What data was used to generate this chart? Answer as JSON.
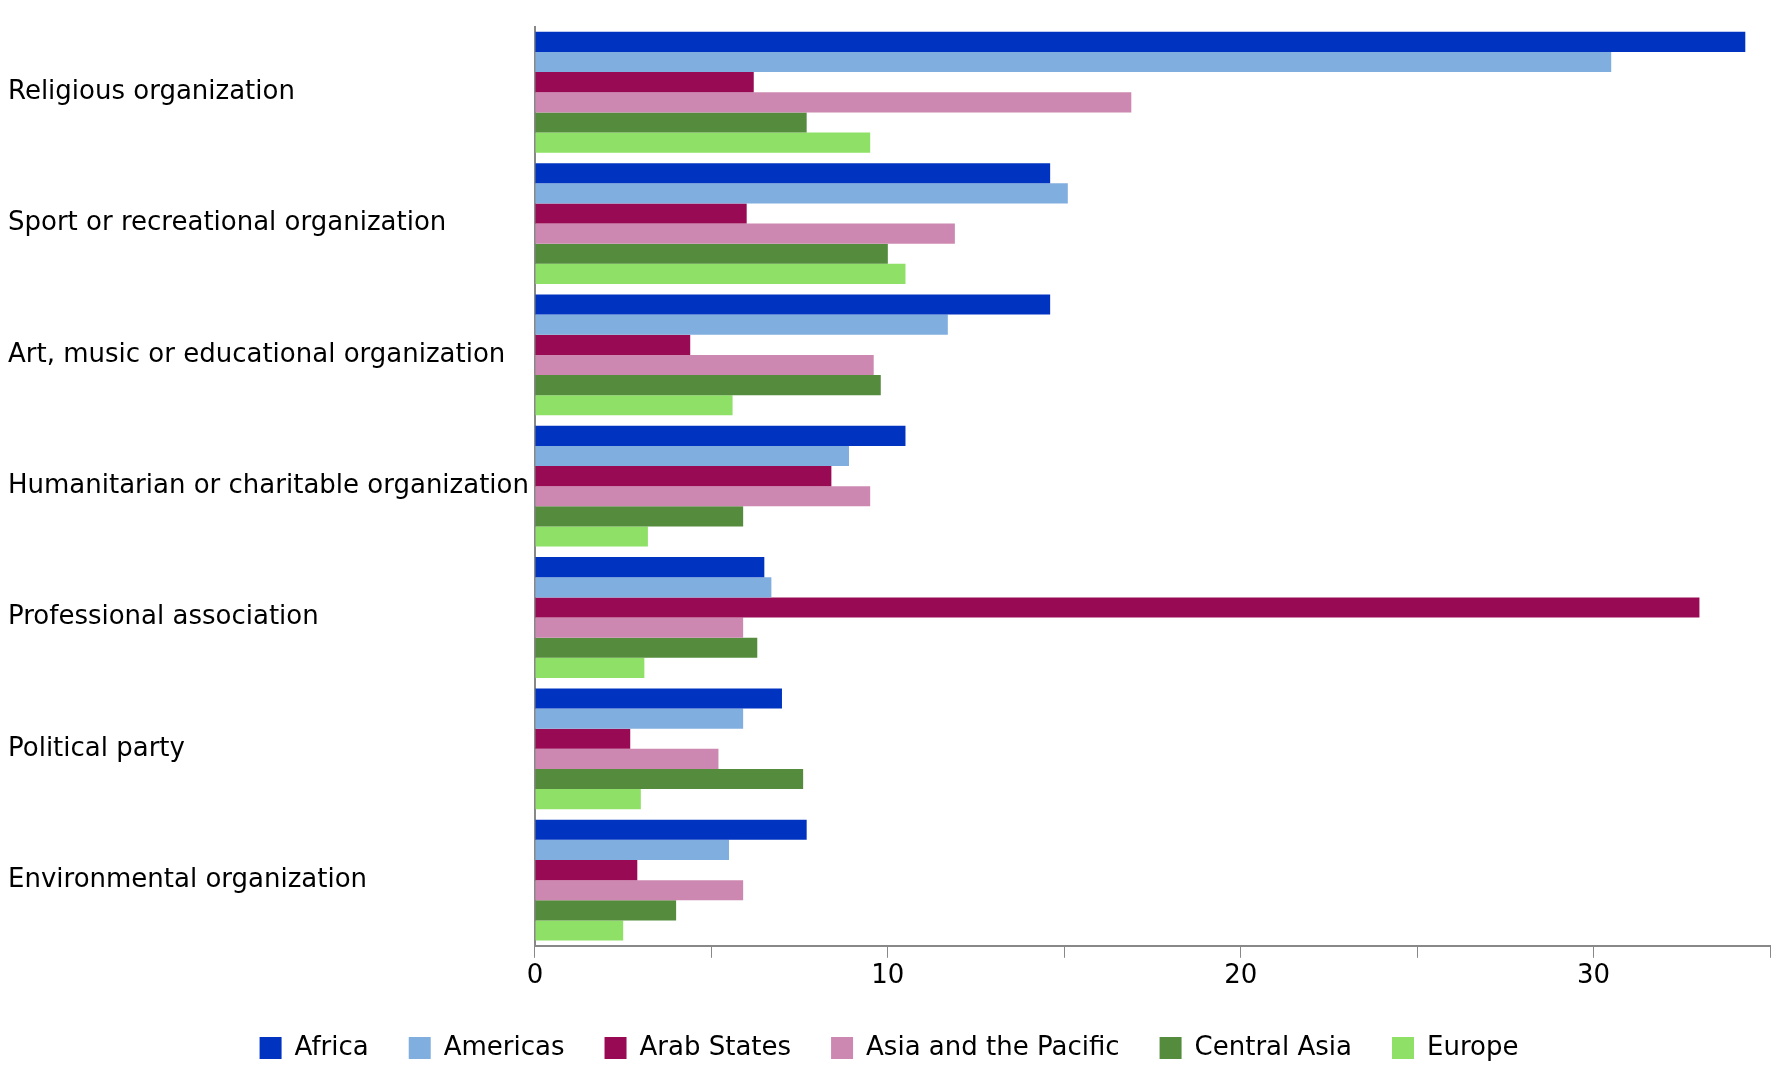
{
  "chart_data": {
    "type": "bar",
    "orientation": "horizontal",
    "categories": [
      "Religious organization",
      "Sport or recreational organization",
      "Art, music or educational organization",
      "Humanitarian or charitable organization",
      "Professional association",
      "Political party",
      "Environmental organization"
    ],
    "series": [
      {
        "name": "Africa",
        "color": "#0033c0",
        "values": [
          34.3,
          14.6,
          14.6,
          10.5,
          6.5,
          7.0,
          7.7
        ]
      },
      {
        "name": "Americas",
        "color": "#80aede",
        "values": [
          30.5,
          15.1,
          11.7,
          8.9,
          6.7,
          5.9,
          5.5
        ]
      },
      {
        "name": "Arab States",
        "color": "#990a55",
        "values": [
          6.2,
          6.0,
          4.4,
          8.4,
          33.0,
          2.7,
          2.9
        ]
      },
      {
        "name": "Asia and the Pacific",
        "color": "#cc88b0",
        "values": [
          16.9,
          11.9,
          9.6,
          9.5,
          5.9,
          5.2,
          5.9
        ]
      },
      {
        "name": "Central Asia",
        "color": "#558b3d",
        "values": [
          7.7,
          10.0,
          9.8,
          5.9,
          6.3,
          7.6,
          4.0
        ]
      },
      {
        "name": "Europe",
        "color": "#8ee066",
        "values": [
          9.5,
          10.5,
          5.6,
          3.2,
          3.1,
          3.0,
          2.5
        ]
      }
    ],
    "xlim": [
      0,
      35
    ],
    "xticks": [
      0,
      {
        "value": 5,
        "label": null
      },
      10,
      {
        "value": 15,
        "label": null
      },
      20,
      {
        "value": 25,
        "label": null
      },
      30,
      {
        "value": 35,
        "label": null
      }
    ],
    "grid": false,
    "legend": "bottom"
  }
}
